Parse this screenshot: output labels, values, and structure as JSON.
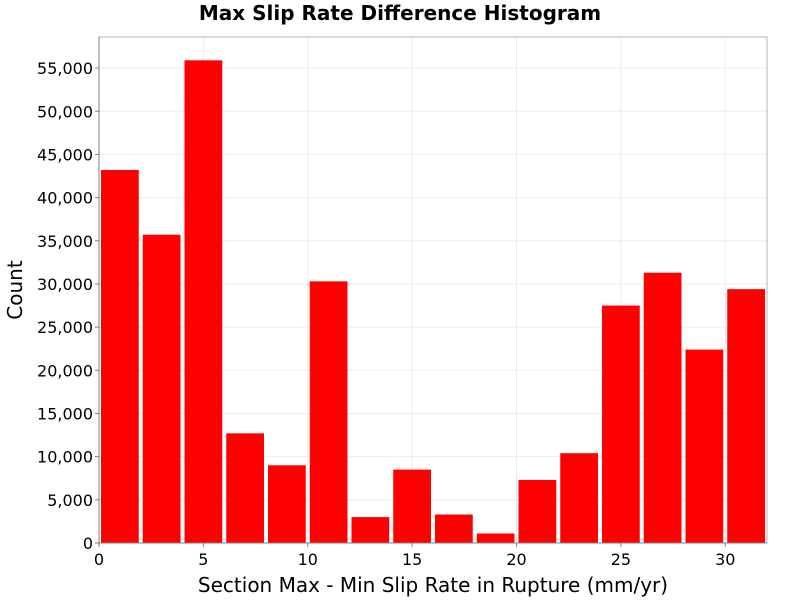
{
  "chart_data": {
    "type": "bar",
    "title": "Max Slip Rate Difference Histogram",
    "xlabel": "Section Max - Min Slip Rate in Rupture (mm/yr)",
    "ylabel": "Count",
    "bin_width": 2,
    "bins": [
      {
        "x": 1,
        "value": 43200
      },
      {
        "x": 3,
        "value": 35700
      },
      {
        "x": 5,
        "value": 55900
      },
      {
        "x": 7,
        "value": 12700
      },
      {
        "x": 9,
        "value": 9000
      },
      {
        "x": 11,
        "value": 30300
      },
      {
        "x": 13,
        "value": 3000
      },
      {
        "x": 15,
        "value": 8500
      },
      {
        "x": 17,
        "value": 3300
      },
      {
        "x": 19,
        "value": 1100
      },
      {
        "x": 21,
        "value": 7300
      },
      {
        "x": 23,
        "value": 10400
      },
      {
        "x": 25,
        "value": 27500
      },
      {
        "x": 27,
        "value": 31300
      },
      {
        "x": 29,
        "value": 22400
      },
      {
        "x": 31,
        "value": 29400
      }
    ],
    "xlim": [
      0,
      32
    ],
    "ylim": [
      0,
      58600
    ],
    "xticks": [
      0,
      5,
      10,
      15,
      20,
      25,
      30
    ],
    "xtick_labels": [
      "0",
      "5",
      "10",
      "15",
      "20",
      "25",
      "30"
    ],
    "yticks": [
      0,
      5000,
      10000,
      15000,
      20000,
      25000,
      30000,
      35000,
      40000,
      45000,
      50000,
      55000
    ],
    "ytick_labels": [
      "0",
      "5,000",
      "10,000",
      "15,000",
      "20,000",
      "25,000",
      "30,000",
      "35,000",
      "40,000",
      "45,000",
      "50,000",
      "55,000"
    ],
    "grid": true,
    "bar_color": "#ff0000"
  }
}
